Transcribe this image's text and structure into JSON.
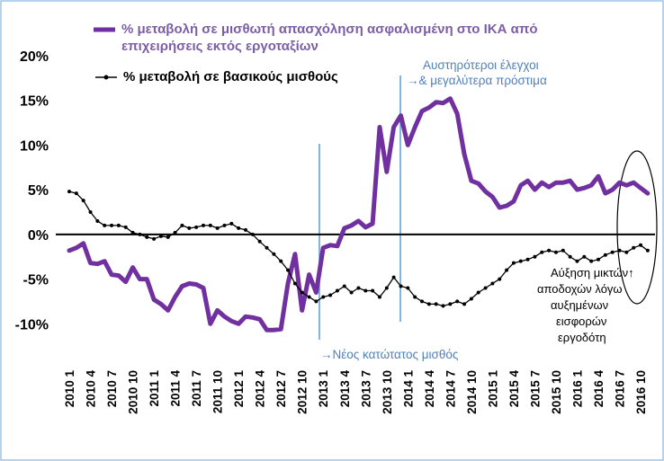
{
  "chart_data": {
    "type": "line",
    "categories": [
      "2010 1",
      null,
      null,
      "2010 4",
      null,
      null,
      "2010 7",
      null,
      null,
      "2010 10",
      null,
      null,
      "2011 1",
      null,
      null,
      "2011 4",
      null,
      null,
      "2011 7",
      null,
      null,
      "2011 10",
      null,
      null,
      "2012 1",
      null,
      null,
      "2012 4",
      null,
      null,
      "2012 7",
      null,
      null,
      "2012 10",
      null,
      null,
      "2013 1",
      null,
      null,
      "2013 4",
      null,
      null,
      "2013 7",
      null,
      null,
      "2013 10",
      null,
      null,
      "2014 1",
      null,
      null,
      "2014 4",
      null,
      null,
      "2014 7",
      null,
      null,
      "2014 10",
      null,
      null,
      "2015 1",
      null,
      null,
      "2015 4",
      null,
      null,
      "2015 7",
      null,
      null,
      "2015 10",
      null,
      null,
      "2016 1",
      null,
      null,
      "2016 4",
      null,
      null,
      "2016 7",
      null,
      null,
      "2016 10",
      null
    ],
    "series": [
      {
        "name": "% μεταβολή σε μισθωτή απασχόληση ασφαλισμένη στο ΙΚΑ από επιχειρήσεις εκτός εργοταξίων",
        "color": "#7030a0",
        "values": [
          -1.8,
          -1.5,
          -1.0,
          -3.2,
          -3.3,
          -3.0,
          -4.5,
          -4.6,
          -5.3,
          -3.7,
          -5.0,
          -5.0,
          -7.3,
          -7.8,
          -8.5,
          -7.0,
          -5.8,
          -5.5,
          -5.6,
          -6.0,
          -10.0,
          -8.5,
          -9.2,
          -9.7,
          -10.0,
          -9.2,
          -9.3,
          -9.5,
          -10.7,
          -10.7,
          -10.6,
          -5.5,
          -2.2,
          -8.5,
          -4.5,
          -6.5,
          -1.5,
          -1.2,
          -1.3,
          0.7,
          1.0,
          1.5,
          0.8,
          1.2,
          12.0,
          7.0,
          12.0,
          13.3,
          10.0,
          12.0,
          13.8,
          14.2,
          14.8,
          14.7,
          15.2,
          13.5,
          9.0,
          6.0,
          5.7,
          4.8,
          4.2,
          3.0,
          3.2,
          3.7,
          5.5,
          6.0,
          5.0,
          5.8,
          5.3,
          5.8,
          5.8,
          6.0,
          5.0,
          5.2,
          5.5,
          6.5,
          4.6,
          5.0,
          5.8,
          5.5,
          5.8,
          5.2,
          4.6
        ]
      },
      {
        "name": "% μεταβολή σε βασικούς μισθούς",
        "color": "#000000",
        "values": [
          4.8,
          4.6,
          3.8,
          2.5,
          1.5,
          1.0,
          1.0,
          1.0,
          0.8,
          0.2,
          0.0,
          -0.3,
          -0.5,
          -0.2,
          -0.3,
          0.2,
          1.0,
          0.7,
          0.8,
          1.0,
          1.0,
          0.7,
          1.0,
          1.2,
          0.7,
          0.5,
          0.0,
          -0.8,
          -1.5,
          -2.2,
          -3.0,
          -4.0,
          -5.5,
          -6.5,
          -7.0,
          -7.5,
          -7.0,
          -6.8,
          -6.3,
          -5.8,
          -6.5,
          -6.0,
          -6.3,
          -6.3,
          -7.0,
          -6.0,
          -4.8,
          -5.8,
          -6.0,
          -7.0,
          -7.5,
          -7.8,
          -7.8,
          -8.0,
          -7.8,
          -7.5,
          -7.8,
          -7.2,
          -6.5,
          -6.0,
          -5.5,
          -5.0,
          -4.0,
          -3.2,
          -3.0,
          -2.8,
          -2.5,
          -2.0,
          -1.8,
          -2.0,
          -1.8,
          -2.5,
          -3.0,
          -2.5,
          -3.0,
          -2.8,
          -2.3,
          -2.0,
          -1.8,
          -2.0,
          -1.5,
          -1.2,
          -1.8
        ]
      }
    ],
    "ylim": [
      -15,
      20
    ],
    "yticks": [
      {
        "value": -10,
        "label": "-10%"
      },
      {
        "value": -5,
        "label": "-5%"
      },
      {
        "value": 0,
        "label": "0%"
      },
      {
        "value": 5,
        "label": "5%"
      },
      {
        "value": 10,
        "label": "10%"
      },
      {
        "value": 15,
        "label": "15%"
      },
      {
        "value": 20,
        "label": "20%"
      }
    ],
    "annotations": [
      "Αυστηρότεροι έλεγχοι",
      "→& μεγαλύτερα πρόστιμα",
      "→Νέος κατώτατος μισθός",
      "Αύξηση μικτών↑",
      "αποδοχών λόγω",
      "αυξημένων",
      "εισφορών",
      "εργοδότη"
    ]
  }
}
